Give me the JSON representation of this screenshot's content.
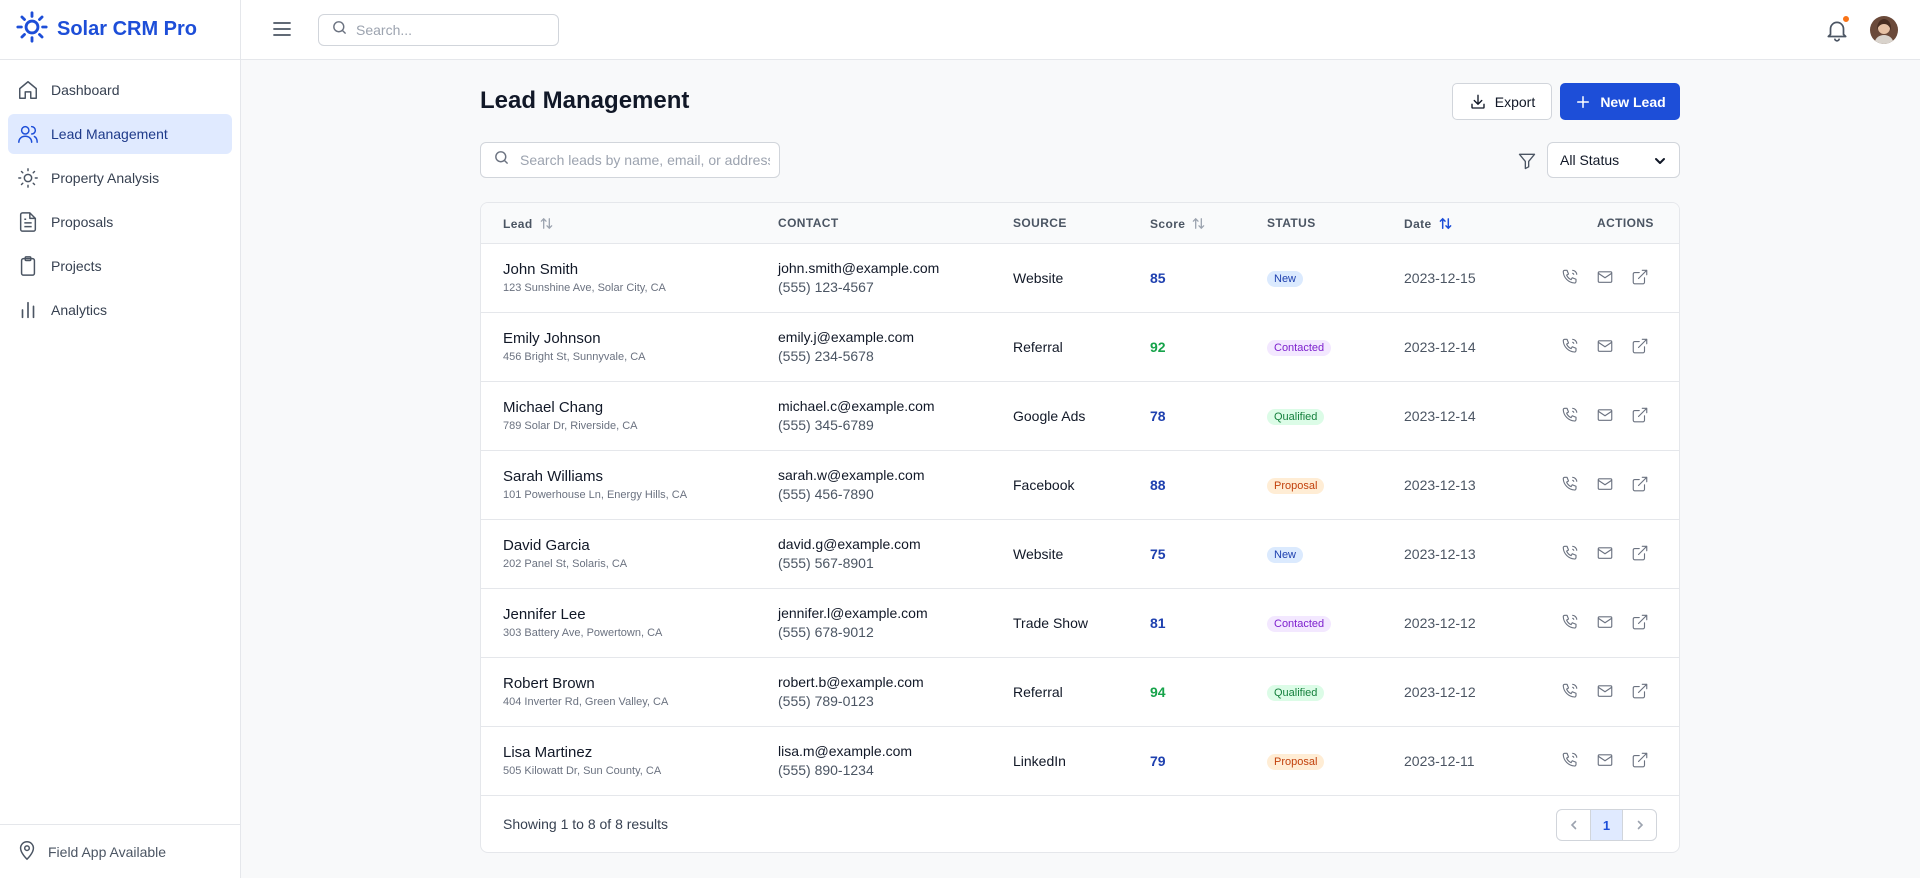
{
  "app": {
    "title": "Solar CRM Pro"
  },
  "sidebar": {
    "items": [
      {
        "label": "Dashboard",
        "icon": "home-icon"
      },
      {
        "label": "Lead Management",
        "icon": "users-icon",
        "active": true
      },
      {
        "label": "Property Analysis",
        "icon": "sun-icon"
      },
      {
        "label": "Proposals",
        "icon": "file-text-icon"
      },
      {
        "label": "Projects",
        "icon": "clipboard-icon"
      },
      {
        "label": "Analytics",
        "icon": "bar-chart-icon"
      }
    ],
    "footer": "Field App Available"
  },
  "topbar": {
    "search_placeholder": "Search..."
  },
  "page": {
    "title": "Lead Management",
    "export_label": "Export",
    "new_lead_label": "New Lead",
    "search_placeholder": "Search leads by name, email, or address...",
    "status_filter": "All Status"
  },
  "table": {
    "headers": {
      "lead": "Lead",
      "contact": "CONTACT",
      "source": "SOURCE",
      "score": "Score",
      "status": "STATUS",
      "date": "Date",
      "actions": "ACTIONS"
    },
    "rows": [
      {
        "name": "John Smith",
        "address": "123 Sunshine Ave, Solar City, CA",
        "email": "john.smith@example.com",
        "phone": "(555) 123-4567",
        "source": "Website",
        "score": "85",
        "status": "New",
        "date": "2023-12-15"
      },
      {
        "name": "Emily Johnson",
        "address": "456 Bright St, Sunnyvale, CA",
        "email": "emily.j@example.com",
        "phone": "(555) 234-5678",
        "source": "Referral",
        "score": "92",
        "status": "Contacted",
        "date": "2023-12-14"
      },
      {
        "name": "Michael Chang",
        "address": "789 Solar Dr, Riverside, CA",
        "email": "michael.c@example.com",
        "phone": "(555) 345-6789",
        "source": "Google Ads",
        "score": "78",
        "status": "Qualified",
        "date": "2023-12-14"
      },
      {
        "name": "Sarah Williams",
        "address": "101 Powerhouse Ln, Energy Hills, CA",
        "email": "sarah.w@example.com",
        "phone": "(555) 456-7890",
        "source": "Facebook",
        "score": "88",
        "status": "Proposal",
        "date": "2023-12-13"
      },
      {
        "name": "David Garcia",
        "address": "202 Panel St, Solaris, CA",
        "email": "david.g@example.com",
        "phone": "(555) 567-8901",
        "source": "Website",
        "score": "75",
        "status": "New",
        "date": "2023-12-13"
      },
      {
        "name": "Jennifer Lee",
        "address": "303 Battery Ave, Powertown, CA",
        "email": "jennifer.l@example.com",
        "phone": "(555) 678-9012",
        "source": "Trade Show",
        "score": "81",
        "status": "Contacted",
        "date": "2023-12-12"
      },
      {
        "name": "Robert Brown",
        "address": "404 Inverter Rd, Green Valley, CA",
        "email": "robert.b@example.com",
        "phone": "(555) 789-0123",
        "source": "Referral",
        "score": "94",
        "status": "Qualified",
        "date": "2023-12-12"
      },
      {
        "name": "Lisa Martinez",
        "address": "505 Kilowatt Dr, Sun County, CA",
        "email": "lisa.m@example.com",
        "phone": "(555) 890-1234",
        "source": "LinkedIn",
        "score": "79",
        "status": "Proposal",
        "date": "2023-12-11"
      }
    ],
    "footer": "Showing 1 to 8 of 8 results",
    "current_page": "1"
  },
  "colors": {
    "brand": "#1d4ed8",
    "score_high": "#16a34a",
    "score_normal": "#1e40af",
    "status": {
      "New": {
        "bg": "#dbeafe",
        "fg": "#1e40af"
      },
      "Contacted": {
        "bg": "#f3e8ff",
        "fg": "#7e22ce"
      },
      "Qualified": {
        "bg": "#dcfce7",
        "fg": "#15803d"
      },
      "Proposal": {
        "bg": "#ffedd5",
        "fg": "#c2410c"
      }
    }
  }
}
